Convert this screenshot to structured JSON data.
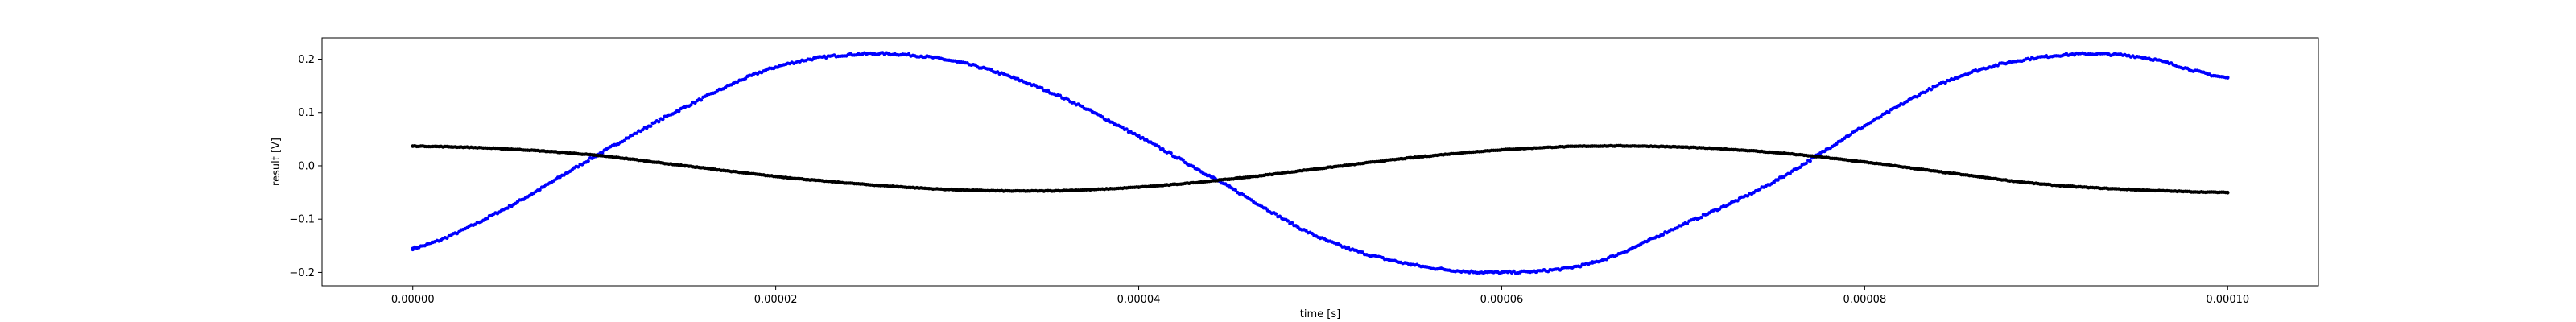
{
  "chart_data": {
    "type": "scatter",
    "title": "",
    "xlabel": "time [s]",
    "ylabel": "result [V]",
    "xlim": [
      -5e-06,
      0.000105
    ],
    "ylim": [
      -0.225,
      0.24
    ],
    "xticks": [
      {
        "value": 0.0,
        "label": "0.00000"
      },
      {
        "value": 2e-05,
        "label": "0.00002"
      },
      {
        "value": 4e-05,
        "label": "0.00004"
      },
      {
        "value": 6e-05,
        "label": "0.00006"
      },
      {
        "value": 8e-05,
        "label": "0.00008"
      },
      {
        "value": 0.0001,
        "label": "0.00010"
      }
    ],
    "yticks": [
      {
        "value": -0.2,
        "label": "−0.2"
      },
      {
        "value": -0.1,
        "label": "−0.1"
      },
      {
        "value": 0.0,
        "label": "0.0"
      },
      {
        "value": 0.1,
        "label": "0.1"
      },
      {
        "value": 0.2,
        "label": "0.2"
      }
    ],
    "grid": false,
    "series": [
      {
        "color": "#0000ff",
        "x": [
          0.0,
          5e-06,
          1e-05,
          1.5e-05,
          2e-05,
          2.5e-05,
          3e-05,
          3.5e-05,
          4e-05,
          4.5e-05,
          5e-05,
          5.5e-05,
          6e-05,
          6.5e-05,
          7e-05,
          7.5e-05,
          8e-05,
          8.5e-05,
          9e-05,
          9.5e-05,
          0.0001
        ],
        "values": [
          -0.155,
          -0.082,
          0.017,
          0.11,
          0.185,
          0.21,
          0.195,
          0.14,
          0.055,
          -0.04,
          -0.135,
          -0.185,
          -0.2,
          -0.182,
          -0.11,
          -0.03,
          0.075,
          0.165,
          0.205,
          0.205,
          0.165
        ]
      },
      {
        "color": "#000000",
        "x": [
          0.0,
          5e-06,
          1e-05,
          1.5e-05,
          2e-05,
          2.5e-05,
          3e-05,
          3.5e-05,
          4e-05,
          4.5e-05,
          5e-05,
          5.5e-05,
          6e-05,
          6.5e-05,
          7e-05,
          7.5e-05,
          8e-05,
          8.5e-05,
          9e-05,
          9.5e-05,
          0.0001
        ],
        "values": [
          0.037,
          0.032,
          0.02,
          0.0,
          -0.02,
          -0.035,
          -0.045,
          -0.047,
          -0.04,
          -0.025,
          -0.005,
          0.015,
          0.03,
          0.037,
          0.035,
          0.025,
          0.007,
          -0.015,
          -0.035,
          -0.045,
          -0.05
        ]
      }
    ]
  }
}
